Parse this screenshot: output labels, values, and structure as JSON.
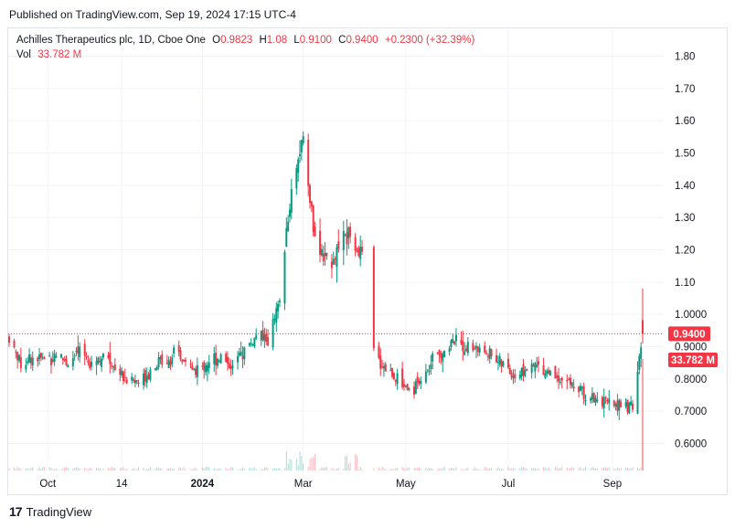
{
  "header": {
    "published": "Published on TradingView.com, Sep 19, 2024 17:15 UTC-4"
  },
  "legend": {
    "symbol": "Achilles Therapeutics plc, 1D, Cboe One",
    "o_label": "O",
    "o_value": "0.9823",
    "h_label": "H",
    "h_value": "1.08",
    "l_label": "L",
    "l_value": "0.9100",
    "c_label": "C",
    "c_value": "0.9400",
    "change": "+0.2300 (+32.39%)",
    "vol_label": "Vol",
    "vol_value": "33.782 M"
  },
  "footer": {
    "brand": "TradingView",
    "logo": "17"
  },
  "colors": {
    "up": "#089981",
    "down": "#f23645",
    "grid": "#f0f3fa",
    "axis": "#e0e3eb"
  },
  "chart_data": {
    "type": "line",
    "title": "Achilles Therapeutics plc, 1D, Cboe One",
    "xlabel": "",
    "ylabel": "",
    "ylim": [
      0.52,
      1.84
    ],
    "y_ticks": [
      "0.6000",
      "0.7000",
      "0.8000",
      "0.9000",
      "1.0000",
      "1.10",
      "1.20",
      "1.30",
      "1.40",
      "1.50",
      "1.60",
      "1.70",
      "1.80"
    ],
    "y_tick_values": [
      0.6,
      0.7,
      0.8,
      0.9,
      1.0,
      1.1,
      1.2,
      1.3,
      1.4,
      1.5,
      1.6,
      1.7,
      1.8
    ],
    "x_ticks": [
      "Oct",
      "14",
      "2024",
      "Mar",
      "May",
      "Jul",
      "Sep"
    ],
    "x_tick_dates": [
      "2023-10-01",
      "2023-11-14",
      "2024-01-01",
      "2024-03-01",
      "2024-05-01",
      "2024-07-01",
      "2024-09-01"
    ],
    "grid": true,
    "last_price": "0.9400",
    "last_volume": "33.782 M",
    "series": [
      {
        "name": "Price",
        "points": [
          [
            "2023-09-08",
            0.93
          ],
          [
            "2023-09-15",
            0.85
          ],
          [
            "2023-09-22",
            0.87
          ],
          [
            "2023-09-29",
            0.86
          ],
          [
            "2023-10-06",
            0.88
          ],
          [
            "2023-10-13",
            0.85
          ],
          [
            "2023-10-20",
            0.88
          ],
          [
            "2023-10-27",
            0.86
          ],
          [
            "2023-11-03",
            0.87
          ],
          [
            "2023-11-10",
            0.84
          ],
          [
            "2023-11-17",
            0.8
          ],
          [
            "2023-11-24",
            0.79
          ],
          [
            "2023-12-01",
            0.83
          ],
          [
            "2023-12-08",
            0.86
          ],
          [
            "2023-12-15",
            0.87
          ],
          [
            "2023-12-22",
            0.85
          ],
          [
            "2023-12-29",
            0.82
          ],
          [
            "2024-01-05",
            0.86
          ],
          [
            "2024-01-12",
            0.87
          ],
          [
            "2024-01-19",
            0.84
          ],
          [
            "2024-01-26",
            0.89
          ],
          [
            "2024-02-02",
            0.93
          ],
          [
            "2024-02-09",
            0.92
          ],
          [
            "2024-02-16",
            1.03
          ],
          [
            "2024-02-23",
            1.42
          ],
          [
            "2024-03-01",
            1.55
          ],
          [
            "2024-03-08",
            1.22
          ],
          [
            "2024-03-15",
            1.16
          ],
          [
            "2024-03-22",
            1.2
          ],
          [
            "2024-03-29",
            1.24
          ],
          [
            "2024-04-05",
            1.18
          ],
          [
            "2024-04-12",
            0.88
          ],
          [
            "2024-04-19",
            0.83
          ],
          [
            "2024-04-26",
            0.8
          ],
          [
            "2024-05-03",
            0.77
          ],
          [
            "2024-05-10",
            0.79
          ],
          [
            "2024-05-17",
            0.85
          ],
          [
            "2024-05-24",
            0.9
          ],
          [
            "2024-05-31",
            0.92
          ],
          [
            "2024-06-07",
            0.9
          ],
          [
            "2024-06-14",
            0.89
          ],
          [
            "2024-06-21",
            0.88
          ],
          [
            "2024-06-28",
            0.84
          ],
          [
            "2024-07-05",
            0.81
          ],
          [
            "2024-07-12",
            0.83
          ],
          [
            "2024-07-19",
            0.84
          ],
          [
            "2024-07-26",
            0.82
          ],
          [
            "2024-08-02",
            0.8
          ],
          [
            "2024-08-09",
            0.78
          ],
          [
            "2024-08-16",
            0.75
          ],
          [
            "2024-08-23",
            0.74
          ],
          [
            "2024-08-30",
            0.72
          ],
          [
            "2024-09-06",
            0.72
          ],
          [
            "2024-09-13",
            0.71
          ],
          [
            "2024-09-19",
            0.94
          ]
        ]
      }
    ]
  }
}
